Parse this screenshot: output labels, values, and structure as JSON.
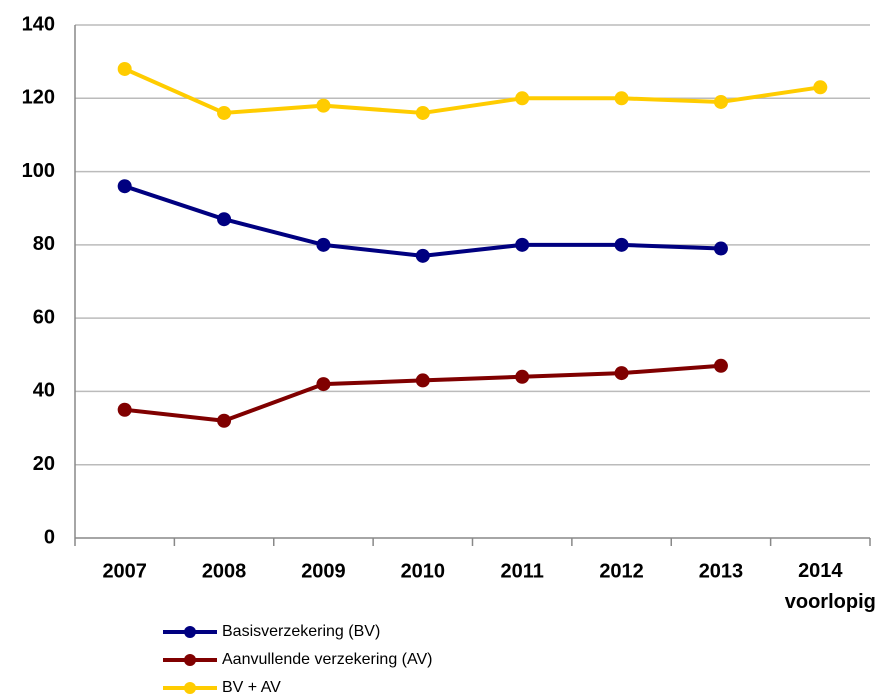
{
  "chart_data": {
    "type": "line",
    "categories": [
      "2007",
      "2008",
      "2009",
      "2010",
      "2011",
      "2012",
      "2013",
      "2014 voorlopig"
    ],
    "series": [
      {
        "name": "Basisverzekering (BV)",
        "color": "#000080",
        "values": [
          96,
          87,
          80,
          77,
          80,
          80,
          79,
          null
        ]
      },
      {
        "name": "Aanvullende verzekering (AV)",
        "color": "#800000",
        "values": [
          35,
          32,
          42,
          43,
          44,
          45,
          47,
          null
        ]
      },
      {
        "name": "BV + AV",
        "color": "#ffcc00",
        "values": [
          128,
          116,
          118,
          116,
          120,
          120,
          119,
          123
        ]
      }
    ],
    "ylim": [
      0,
      140
    ],
    "yticks": [
      0,
      20,
      40,
      60,
      80,
      100,
      120,
      140
    ],
    "grid": true,
    "legend": "bottom"
  }
}
